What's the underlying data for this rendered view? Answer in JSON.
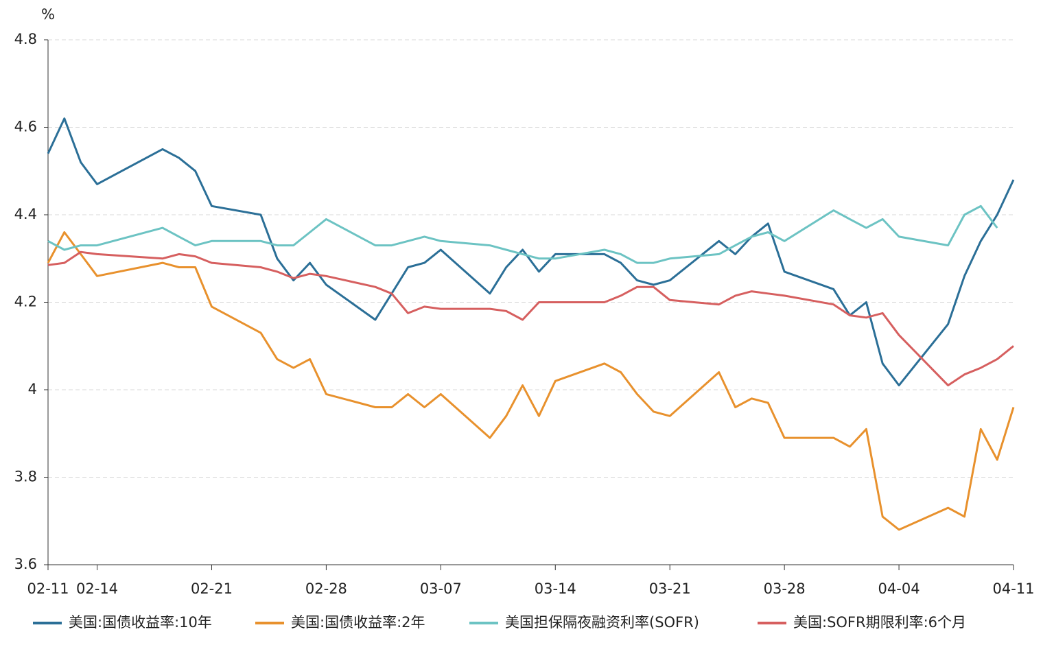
{
  "chart_data": {
    "type": "line",
    "y_label": "%",
    "x": [
      "02-11",
      "02-12",
      "02-13",
      "02-14",
      "02-18",
      "02-19",
      "02-20",
      "02-21",
      "02-24",
      "02-25",
      "02-26",
      "02-27",
      "02-28",
      "03-03",
      "03-04",
      "03-05",
      "03-06",
      "03-07",
      "03-10",
      "03-11",
      "03-12",
      "03-13",
      "03-14",
      "03-17",
      "03-18",
      "03-19",
      "03-20",
      "03-21",
      "03-24",
      "03-25",
      "03-26",
      "03-27",
      "03-28",
      "03-31",
      "04-01",
      "04-02",
      "04-03",
      "04-04",
      "04-07",
      "04-08",
      "04-09",
      "04-10",
      "04-11"
    ],
    "xlim": [
      "02-11",
      "04-11"
    ],
    "xticks": [
      "02-11",
      "02-14",
      "02-21",
      "02-28",
      "03-07",
      "03-14",
      "03-21",
      "03-28",
      "04-04",
      "04-11"
    ],
    "ylim": [
      3.6,
      4.8
    ],
    "yticks": [
      3.6,
      3.8,
      4,
      4.2,
      4.4,
      4.6,
      4.8
    ],
    "grid": true,
    "series": [
      {
        "name": "美国:国债收益率:10年",
        "color": "#2b6f97",
        "values": [
          4.54,
          4.62,
          4.52,
          4.47,
          4.55,
          4.53,
          4.5,
          4.42,
          4.4,
          4.3,
          4.25,
          4.29,
          4.24,
          4.16,
          4.22,
          4.28,
          4.29,
          4.32,
          4.22,
          4.28,
          4.32,
          4.27,
          4.31,
          4.31,
          4.29,
          4.25,
          4.24,
          4.25,
          4.34,
          4.31,
          4.35,
          4.38,
          4.27,
          4.23,
          4.17,
          4.2,
          4.06,
          4.01,
          4.15,
          4.26,
          4.34,
          4.4,
          4.48
        ]
      },
      {
        "name": "美国:国债收益率:2年",
        "color": "#e8912d",
        "values": [
          4.29,
          4.36,
          4.31,
          4.26,
          4.29,
          4.28,
          4.28,
          4.19,
          4.13,
          4.07,
          4.05,
          4.07,
          3.99,
          3.96,
          3.96,
          3.99,
          3.96,
          3.99,
          3.89,
          3.94,
          4.01,
          3.94,
          4.02,
          4.06,
          4.04,
          3.99,
          3.95,
          3.94,
          4.04,
          3.96,
          3.98,
          3.97,
          3.89,
          3.89,
          3.87,
          3.91,
          3.71,
          3.68,
          3.73,
          3.71,
          3.91,
          3.84,
          3.96
        ]
      },
      {
        "name": "美国担保隔夜融资利率(SOFR)",
        "color": "#6cc3c3",
        "values": [
          4.34,
          4.32,
          4.33,
          4.33,
          4.37,
          4.35,
          4.33,
          4.34,
          4.34,
          4.33,
          4.33,
          4.36,
          4.39,
          4.33,
          4.33,
          4.34,
          4.35,
          4.34,
          4.33,
          4.32,
          4.31,
          4.3,
          4.3,
          4.32,
          4.31,
          4.29,
          4.29,
          4.3,
          4.31,
          4.33,
          4.35,
          4.36,
          4.34,
          4.41,
          4.39,
          4.37,
          4.39,
          4.35,
          4.33,
          4.4,
          4.42,
          4.37,
          null
        ]
      },
      {
        "name": "美国:SOFR期限利率:6个月",
        "color": "#d65f5f",
        "values": [
          4.285,
          4.29,
          4.315,
          4.31,
          4.3,
          4.31,
          4.305,
          4.29,
          4.28,
          4.27,
          4.255,
          4.265,
          4.26,
          4.235,
          4.22,
          4.175,
          4.19,
          4.185,
          4.185,
          4.18,
          4.16,
          4.2,
          4.2,
          4.2,
          4.215,
          4.235,
          4.235,
          4.205,
          4.195,
          4.215,
          4.225,
          4.22,
          4.215,
          4.195,
          4.17,
          4.165,
          4.175,
          4.125,
          4.01,
          4.035,
          4.05,
          4.07,
          4.1
        ]
      }
    ]
  }
}
